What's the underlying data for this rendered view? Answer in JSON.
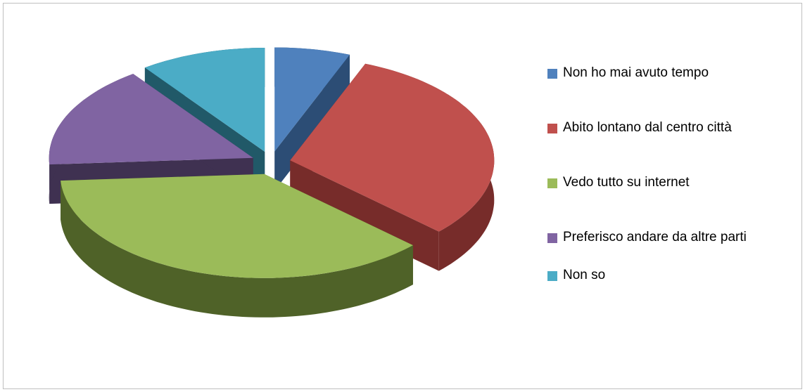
{
  "chart_data": {
    "type": "pie3d",
    "categories": [
      "Non ho mai avuto tempo",
      "Abito lontano dal centro città",
      "Vedo tutto su internet",
      "Preferisco andare da altre parti",
      "Non so"
    ],
    "values": [
      6,
      31,
      37,
      16,
      10
    ],
    "colors": [
      "#4f81bd",
      "#c0504d",
      "#9bbb59",
      "#8064a2",
      "#4bacc6"
    ],
    "side_colors": [
      "#2c4d75",
      "#772c2a",
      "#4f6228",
      "#3f3151",
      "#215968"
    ],
    "legend": "right"
  }
}
